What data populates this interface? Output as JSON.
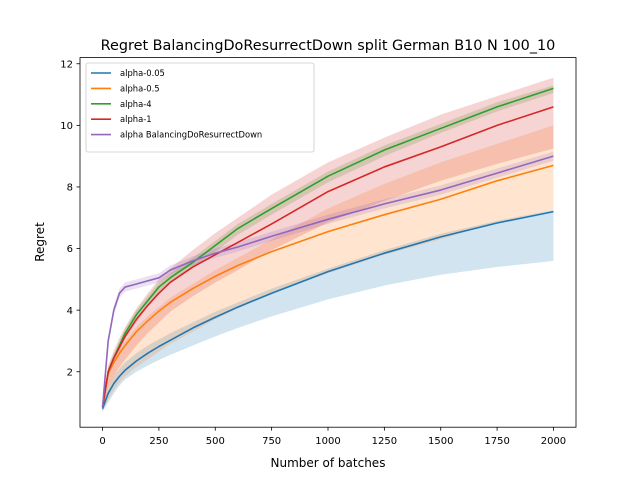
{
  "chart_data": {
    "type": "line",
    "title": "Regret BalancingDoResurrectDown split German B10 N 100_10",
    "xlabel": "Number of batches",
    "ylabel": "Regret",
    "xlim": [
      -100,
      2100
    ],
    "ylim": [
      0.2,
      12.2
    ],
    "xticks": [
      0,
      250,
      500,
      750,
      1000,
      1250,
      1500,
      1750,
      2000
    ],
    "xtick_labels": [
      "0",
      "250",
      "500",
      "750",
      "1000",
      "1250",
      "1500",
      "1750",
      "2000"
    ],
    "yticks": [
      2,
      4,
      6,
      8,
      10,
      12
    ],
    "ytick_labels": [
      "2",
      "4",
      "6",
      "8",
      "10",
      "12"
    ],
    "grid": false,
    "legend_position": "top-left",
    "x": [
      0,
      25,
      50,
      75,
      100,
      150,
      200,
      250,
      300,
      400,
      500,
      600,
      750,
      1000,
      1250,
      1500,
      1750,
      2000
    ],
    "series": [
      {
        "name": "alpha-0.05",
        "color": "#1f77b4",
        "mean": [
          0.8,
          1.3,
          1.62,
          1.85,
          2.05,
          2.35,
          2.6,
          2.82,
          3.02,
          3.42,
          3.77,
          4.1,
          4.55,
          5.25,
          5.85,
          6.38,
          6.83,
          7.2
        ],
        "lower": [
          0.7,
          1.0,
          1.3,
          1.55,
          1.75,
          2.0,
          2.2,
          2.38,
          2.55,
          2.85,
          3.15,
          3.42,
          3.8,
          4.35,
          4.8,
          5.15,
          5.4,
          5.6
        ],
        "upper": [
          0.9,
          1.5,
          1.85,
          2.1,
          2.3,
          2.6,
          2.85,
          3.05,
          3.25,
          3.6,
          3.95,
          4.25,
          4.7,
          5.35,
          5.95,
          6.48,
          6.9,
          7.25
        ]
      },
      {
        "name": "alpha-0.5",
        "color": "#ff7f0e",
        "mean": [
          0.85,
          1.95,
          2.3,
          2.6,
          2.85,
          3.3,
          3.65,
          3.97,
          4.25,
          4.7,
          5.1,
          5.45,
          5.9,
          6.55,
          7.1,
          7.6,
          8.2,
          8.7
        ],
        "lower": [
          0.7,
          1.1,
          1.4,
          1.65,
          1.85,
          2.15,
          2.4,
          2.65,
          2.9,
          3.3,
          3.7,
          4.05,
          4.55,
          5.2,
          5.8,
          6.3,
          6.85,
          7.25
        ],
        "upper": [
          0.95,
          2.1,
          2.45,
          2.75,
          3.0,
          3.45,
          3.8,
          4.1,
          4.4,
          4.85,
          5.3,
          5.7,
          6.3,
          7.3,
          8.1,
          8.8,
          9.4,
          10.0
        ]
      },
      {
        "name": "alpha-4",
        "color": "#2ca02c",
        "mean": [
          0.85,
          2.0,
          2.45,
          2.85,
          3.25,
          3.85,
          4.3,
          4.75,
          5.05,
          5.55,
          6.1,
          6.65,
          7.3,
          8.35,
          9.2,
          9.9,
          10.6,
          11.2
        ],
        "lower": [
          0.75,
          1.85,
          2.3,
          2.7,
          3.05,
          3.6,
          4.1,
          4.55,
          4.9,
          5.4,
          5.9,
          6.45,
          7.1,
          8.15,
          9.0,
          9.75,
          10.45,
          11.05
        ],
        "upper": [
          0.95,
          2.15,
          2.6,
          3.0,
          3.4,
          4.0,
          4.45,
          4.9,
          5.2,
          5.7,
          6.25,
          6.8,
          7.45,
          8.5,
          9.35,
          10.05,
          10.75,
          11.3
        ]
      },
      {
        "name": "alpha-1",
        "color": "#d62728",
        "mean": [
          0.85,
          2.0,
          2.45,
          2.8,
          3.15,
          3.7,
          4.15,
          4.55,
          4.9,
          5.4,
          5.8,
          6.2,
          6.8,
          7.85,
          8.65,
          9.3,
          10.0,
          10.6
        ],
        "lower": [
          0.7,
          1.5,
          1.85,
          2.15,
          2.4,
          2.85,
          3.25,
          3.6,
          3.95,
          4.45,
          4.9,
          5.3,
          5.95,
          6.85,
          7.55,
          8.2,
          8.75,
          9.25
        ],
        "upper": [
          0.95,
          2.2,
          2.7,
          3.1,
          3.45,
          4.05,
          4.55,
          5.0,
          5.35,
          5.95,
          6.5,
          7.0,
          7.75,
          8.8,
          9.6,
          10.35,
          10.95,
          11.55
        ]
      },
      {
        "name": "alpha BalancingDoResurrectDown",
        "color": "#9467bd",
        "mean": [
          0.85,
          3.0,
          4.0,
          4.55,
          4.75,
          4.85,
          4.95,
          5.05,
          5.3,
          5.6,
          5.85,
          6.05,
          6.4,
          6.95,
          7.45,
          7.9,
          8.45,
          9.0
        ],
        "lower": [
          0.8,
          2.85,
          3.85,
          4.4,
          4.6,
          4.7,
          4.8,
          4.9,
          5.15,
          5.45,
          5.7,
          5.9,
          6.25,
          6.8,
          7.3,
          7.75,
          8.3,
          8.85
        ],
        "upper": [
          0.9,
          3.15,
          4.15,
          4.7,
          4.9,
          5.0,
          5.1,
          5.2,
          5.45,
          5.75,
          6.0,
          6.2,
          6.55,
          7.1,
          7.6,
          8.05,
          8.6,
          9.15
        ]
      }
    ]
  }
}
